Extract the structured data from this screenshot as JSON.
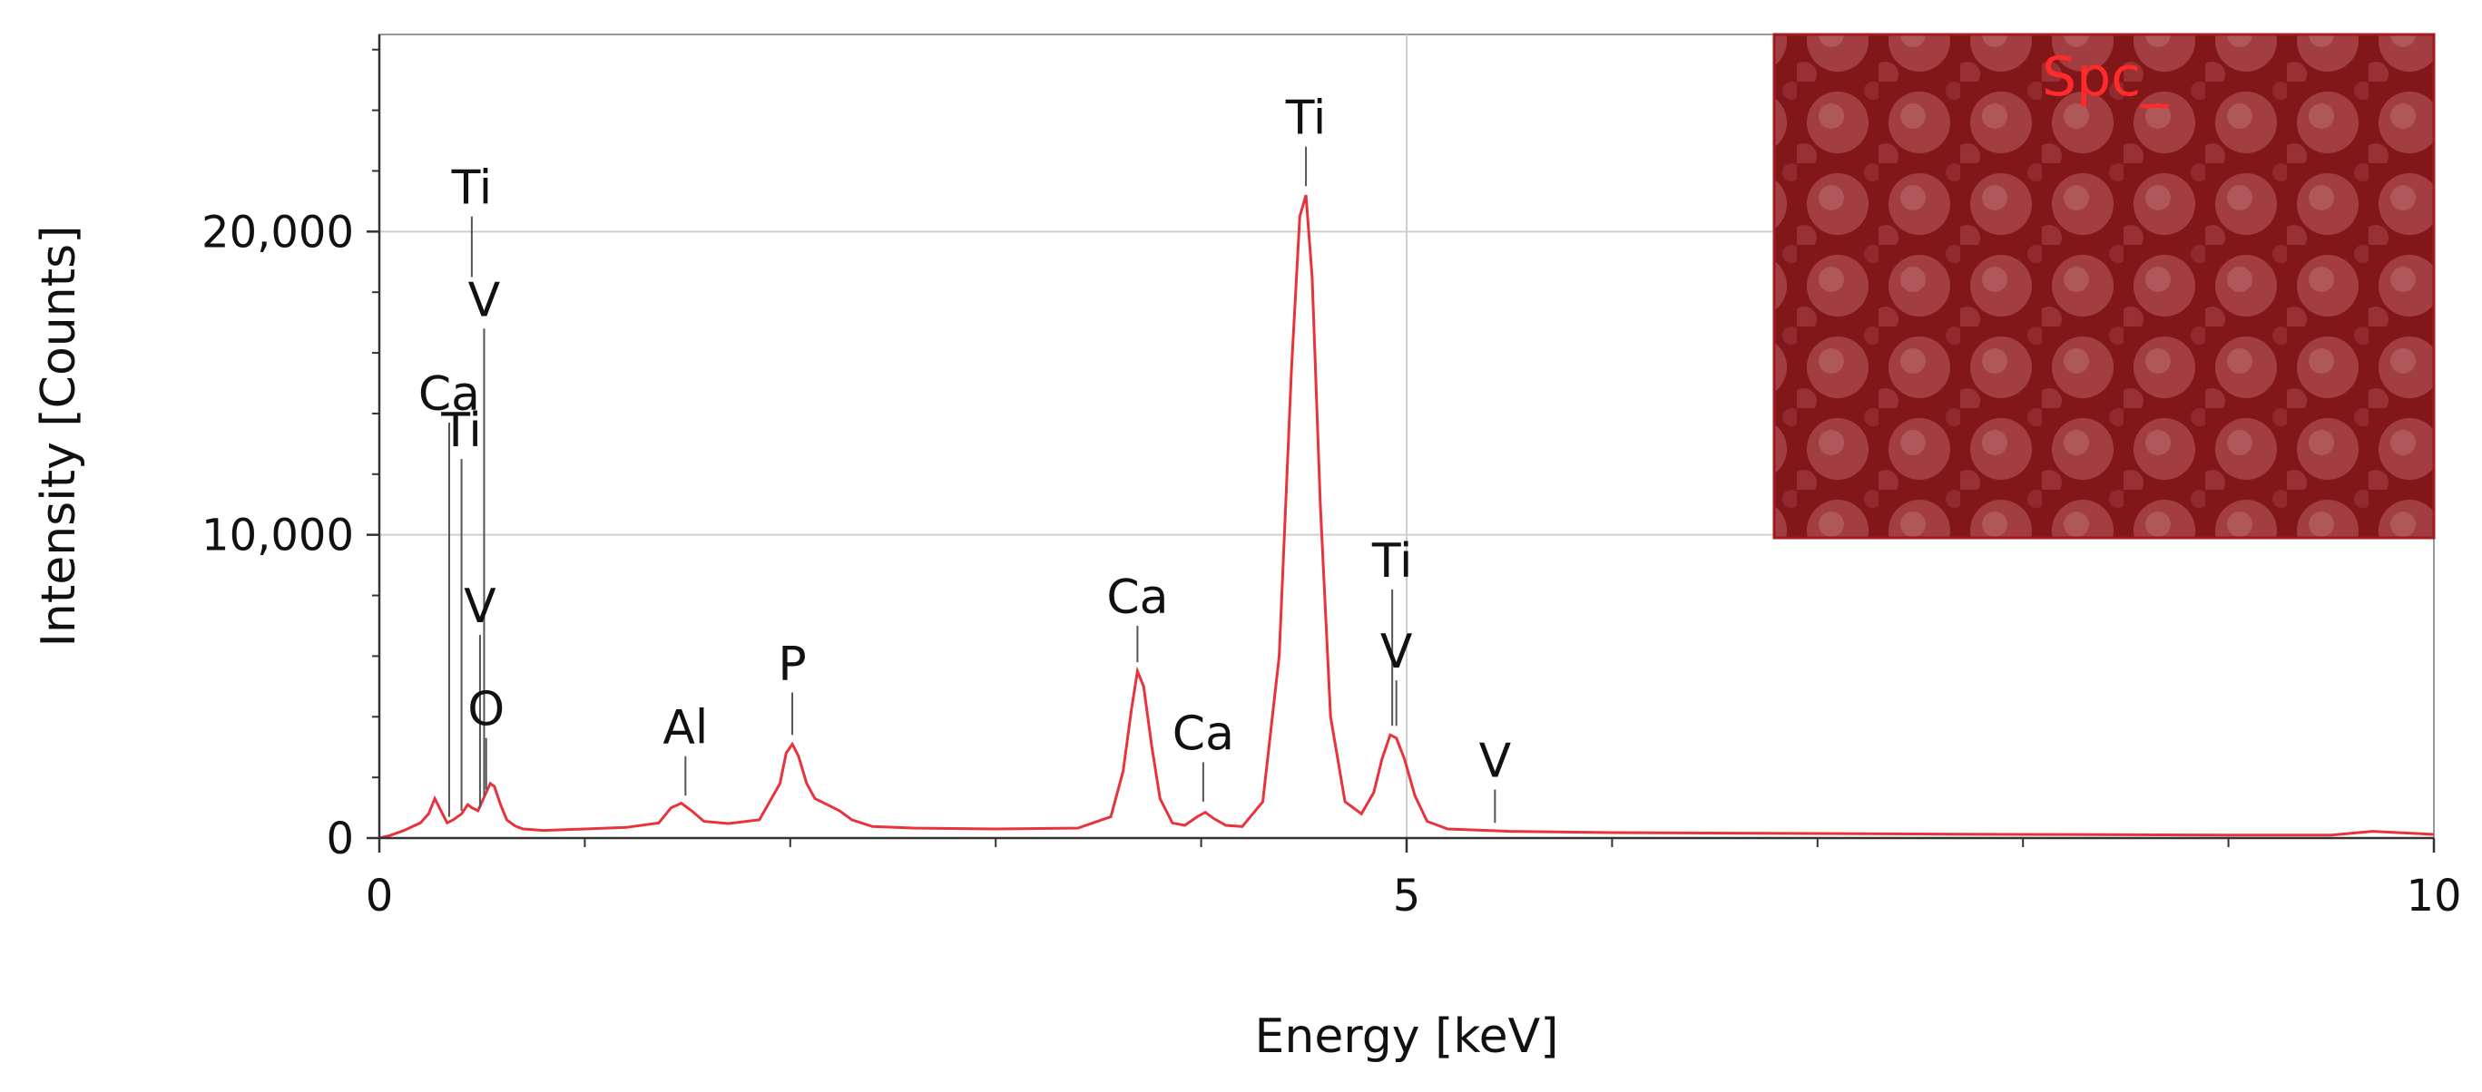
{
  "chart_data": {
    "type": "line",
    "title": "",
    "xlabel": "Energy [keV]",
    "ylabel": "Intensity [Counts]",
    "xlim": [
      0,
      10
    ],
    "ylim": [
      0,
      26500
    ],
    "x_ticks": [
      {
        "value": 0,
        "label": "0"
      },
      {
        "value": 5,
        "label": "5"
      },
      {
        "value": 10,
        "label": "10"
      }
    ],
    "y_ticks": [
      {
        "value": 0,
        "label": "0"
      },
      {
        "value": 10000,
        "label": "10,000"
      },
      {
        "value": 20000,
        "label": "20,000"
      }
    ],
    "grid": true,
    "line_color": "#e8323c",
    "series": [
      {
        "x": [
          0.0,
          0.05,
          0.12,
          0.2,
          0.24,
          0.27,
          0.3,
          0.33,
          0.36,
          0.4,
          0.43,
          0.45,
          0.48,
          0.5,
          0.52,
          0.54,
          0.56,
          0.59,
          0.62,
          0.66,
          0.7,
          0.8,
          1.0,
          1.2,
          1.36,
          1.42,
          1.47,
          1.52,
          1.58,
          1.7,
          1.85,
          1.95,
          1.98,
          2.01,
          2.04,
          2.08,
          2.12,
          2.18,
          2.24,
          2.3,
          2.4,
          2.6,
          3.0,
          3.4,
          3.56,
          3.62,
          3.66,
          3.69,
          3.72,
          3.76,
          3.8,
          3.86,
          3.92,
          3.98,
          4.02,
          4.06,
          4.12,
          4.2,
          4.3,
          4.38,
          4.44,
          4.48,
          4.51,
          4.54,
          4.58,
          4.63,
          4.7,
          4.78,
          4.84,
          4.88,
          4.92,
          4.95,
          4.99,
          5.04,
          5.1,
          5.2,
          5.5,
          6.0,
          7.0,
          8.0,
          9.0,
          9.5,
          9.7,
          10.0
        ],
        "y": [
          0,
          80,
          250,
          500,
          800,
          1300,
          900,
          500,
          600,
          800,
          1100,
          1000,
          900,
          1200,
          1500,
          1800,
          1700,
          1100,
          600,
          400,
          300,
          250,
          300,
          350,
          500,
          1000,
          1150,
          900,
          550,
          480,
          600,
          1800,
          2800,
          3100,
          2700,
          1800,
          1300,
          1100,
          900,
          600,
          380,
          330,
          300,
          330,
          700,
          2200,
          4200,
          5500,
          5000,
          3000,
          1300,
          500,
          420,
          700,
          850,
          650,
          420,
          380,
          1200,
          6000,
          15500,
          20500,
          21200,
          18500,
          11000,
          4000,
          1200,
          800,
          1500,
          2600,
          3400,
          3300,
          2600,
          1400,
          550,
          300,
          220,
          180,
          150,
          120,
          100,
          100,
          220,
          120
        ]
      }
    ],
    "peaks": [
      {
        "label": "Ti",
        "x": 0.45,
        "line_from": 18500,
        "line_to": 20500
      },
      {
        "label": "V",
        "x": 0.51,
        "line_from": 1400,
        "line_to": 16800
      },
      {
        "label": "Ca",
        "x": 0.34,
        "line_from": 700,
        "line_to": 13700
      },
      {
        "label": "Ti",
        "x": 0.4,
        "line_from": 900,
        "line_to": 12500
      },
      {
        "label": "V",
        "x": 0.49,
        "line_from": 1000,
        "line_to": 6700
      },
      {
        "label": "O",
        "x": 0.52,
        "line_from": 1600,
        "line_to": 3300
      },
      {
        "label": "Al",
        "x": 1.49,
        "line_from": 1400,
        "line_to": 2700
      },
      {
        "label": "P",
        "x": 2.01,
        "line_from": 3400,
        "line_to": 4800
      },
      {
        "label": "Ca",
        "x": 3.69,
        "line_from": 5800,
        "line_to": 7000
      },
      {
        "label": "Ca",
        "x": 4.01,
        "line_from": 1200,
        "line_to": 2500
      },
      {
        "label": "Ti",
        "x": 4.51,
        "line_from": 21500,
        "line_to": 22800
      },
      {
        "label": "Ti",
        "x": 4.93,
        "line_from": 3700,
        "line_to": 8200
      },
      {
        "label": "V",
        "x": 4.95,
        "line_from": 3700,
        "line_to": 5200
      },
      {
        "label": "V",
        "x": 5.43,
        "line_from": 500,
        "line_to": 1600
      }
    ],
    "inset": {
      "label": "Spc_",
      "position": "top-right",
      "tint": "#8e0f16"
    }
  }
}
